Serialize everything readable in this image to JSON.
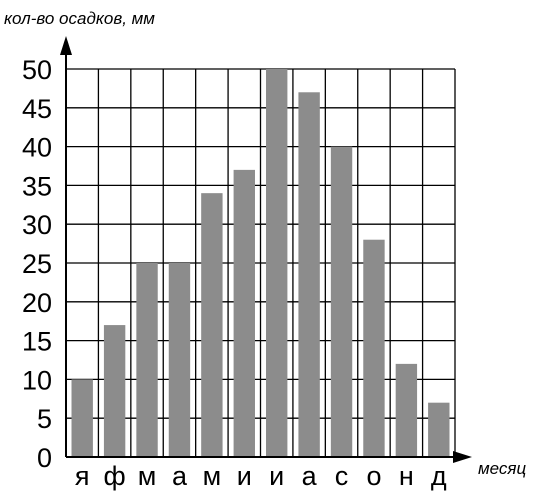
{
  "chart_data": {
    "type": "bar",
    "ylabel": "кол-во осадков, мм",
    "xlabel": "месяц",
    "categories": [
      "я",
      "ф",
      "м",
      "а",
      "м",
      "и",
      "и",
      "а",
      "с",
      "о",
      "н",
      "д"
    ],
    "values": [
      10,
      17,
      25,
      25,
      34,
      37,
      50,
      47,
      40,
      28,
      12,
      7
    ],
    "ylim": [
      0,
      50
    ],
    "yticks": [
      "0",
      "5",
      "10",
      "15",
      "20",
      "25",
      "30",
      "35",
      "40",
      "45",
      "50"
    ],
    "grid": true,
    "bar_color": "#8c8c8c"
  }
}
